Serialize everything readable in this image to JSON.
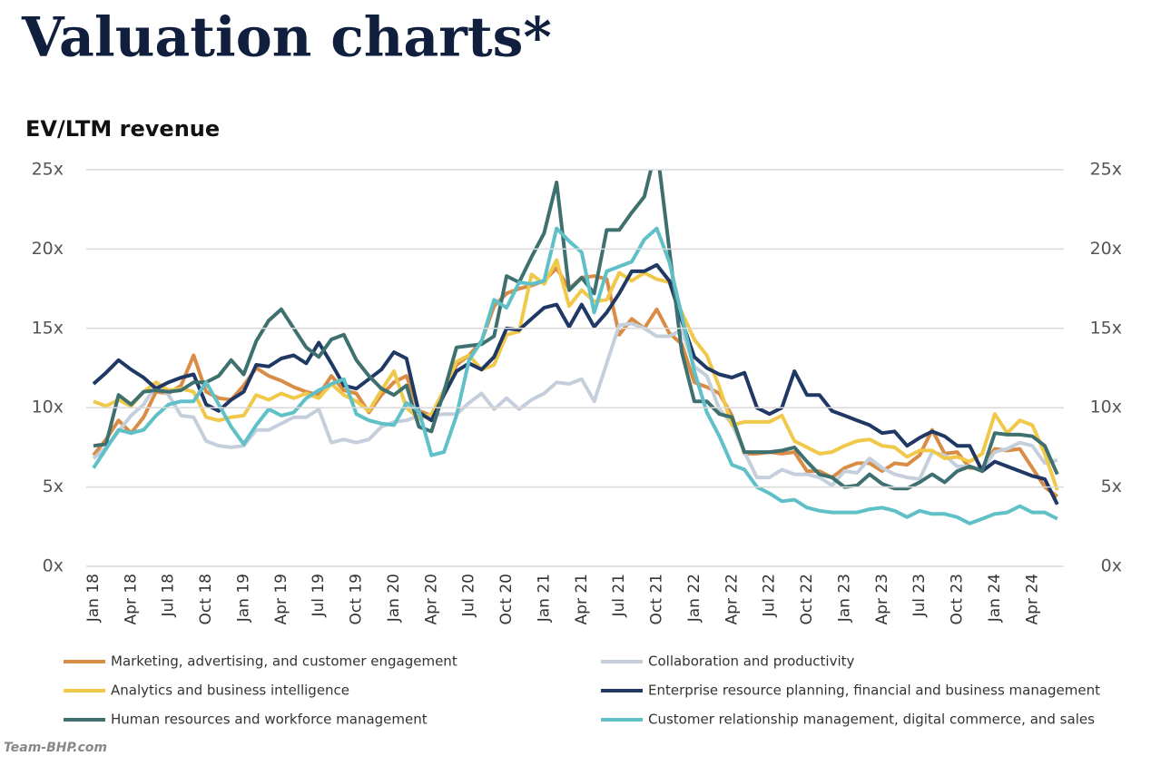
{
  "chart_data": {
    "type": "line",
    "title": "Valuation charts*",
    "subtitle": "EV/LTM revenue",
    "watermark": "Team-BHP.com",
    "categories": [
      "Jan 18",
      null,
      null,
      "Apr 18",
      null,
      null,
      "Jul 18",
      null,
      null,
      "Oct 18",
      null,
      null,
      "Jan 19",
      null,
      null,
      "Apr 19",
      null,
      null,
      "Jul 19",
      null,
      null,
      "Oct 19",
      null,
      null,
      "Jan 20",
      null,
      null,
      "Apr 20",
      null,
      null,
      "Jul 20",
      null,
      null,
      "Oct 20",
      null,
      null,
      "Jan 21",
      null,
      null,
      "Apr 21",
      null,
      null,
      "Jul 21",
      null,
      null,
      "Oct 21",
      null,
      null,
      "Jan 22",
      null,
      null,
      "Apr 22",
      null,
      null,
      "Jul 22",
      null,
      null,
      "Oct 22",
      null,
      null,
      "Jan 23",
      null,
      null,
      "Apr 23",
      null,
      null,
      "Jul 23",
      null,
      null,
      "Oct 23",
      null,
      null,
      "Jan 24",
      null,
      null,
      "Apr 24",
      null,
      null
    ],
    "ylim": [
      0,
      25
    ],
    "yticks": [
      {
        "value": 0,
        "label": "0x"
      },
      {
        "value": 5,
        "label": "5x"
      },
      {
        "value": 10,
        "label": "10x"
      },
      {
        "value": 15,
        "label": "15x"
      },
      {
        "value": 20,
        "label": "20x"
      },
      {
        "value": 25,
        "label": "25x"
      }
    ],
    "grid": true,
    "series": [
      {
        "name": "Marketing, advertising, and customer engagement",
        "color": "#d98c46",
        "values": [
          7,
          8,
          9.2,
          8.4,
          9.4,
          11,
          10.9,
          11.4,
          13.3,
          11,
          10.6,
          10.5,
          11.4,
          12.5,
          12,
          11.7,
          11.3,
          11,
          10.8,
          12,
          11.1,
          10.9,
          9.7,
          10.8,
          11.6,
          12,
          9.8,
          9.5,
          11,
          12.7,
          13.3,
          14.2,
          16.4,
          17.2,
          17.5,
          17.7,
          18,
          18.8,
          17.5,
          18.2,
          18.3,
          18.1,
          14.6,
          15.6,
          15,
          16.2,
          14.7,
          14,
          11.6,
          11.3,
          10.9,
          9.5,
          7.1,
          7.1,
          7.2,
          7.1,
          7.2,
          6,
          6,
          5.6,
          6.2,
          6.5,
          6.5,
          6,
          6.5,
          6.4,
          7,
          8.6,
          7.1,
          7.2,
          6.2,
          6.2,
          7.4,
          7.3,
          7.4,
          6.2,
          5,
          4.4
        ]
      },
      {
        "name": "Collaboration and productivity",
        "color": "#c5cfdc",
        "values": [
          6.8,
          7.5,
          8.5,
          9.5,
          10.2,
          11.4,
          10.8,
          9.5,
          9.4,
          7.9,
          7.6,
          7.5,
          7.6,
          8.6,
          8.6,
          9,
          9.4,
          9.4,
          9.9,
          7.8,
          8,
          7.8,
          8,
          8.8,
          9.1,
          9.2,
          9.5,
          9.5,
          9.6,
          9.6,
          10.3,
          10.9,
          9.9,
          10.6,
          9.9,
          10.5,
          10.9,
          11.6,
          11.5,
          11.8,
          10.4,
          12.8,
          15.2,
          15.3,
          15,
          14.5,
          14.5,
          14.9,
          12.6,
          12,
          9.9,
          9,
          7.2,
          5.6,
          5.6,
          6.1,
          5.8,
          5.8,
          5.6,
          5.1,
          6,
          5.9,
          6.8,
          6.2,
          5.8,
          5.6,
          5.5,
          7.2,
          7,
          6.3,
          6.3,
          6.1,
          7.2,
          7.4,
          7.8,
          7.6,
          6.5,
          6.7
        ]
      },
      {
        "name": "Analytics and business intelligence",
        "color": "#f0c84a",
        "values": [
          10.4,
          10.1,
          10.5,
          10.1,
          11,
          11.6,
          11.1,
          11.2,
          11,
          9.4,
          9.2,
          9.4,
          9.5,
          10.8,
          10.5,
          10.9,
          10.6,
          10.9,
          10.6,
          11.5,
          10.8,
          10.4,
          9.8,
          11.1,
          12.3,
          10,
          9.3,
          9.6,
          11.1,
          12.9,
          13.3,
          12.4,
          12.7,
          14.6,
          14.8,
          18.4,
          17.8,
          19.3,
          16.4,
          17.4,
          16.7,
          16.8,
          18.5,
          18,
          18.5,
          18.1,
          17.9,
          16,
          14.3,
          13.3,
          11.3,
          8.9,
          9.1,
          9.1,
          9.1,
          9.5,
          7.9,
          7.5,
          7.1,
          7.2,
          7.6,
          7.9,
          8,
          7.6,
          7.5,
          6.9,
          7.3,
          7.3,
          6.8,
          6.9,
          6.6,
          7.1,
          9.6,
          8.4,
          9.2,
          8.9,
          7.1,
          4.8
        ]
      },
      {
        "name": "Enterprise resource planning, financial and business management",
        "color": "#203864",
        "values": [
          11.5,
          12.2,
          13,
          12.4,
          11.9,
          11.2,
          11.6,
          11.9,
          12.1,
          10.2,
          9.8,
          10.5,
          11,
          12.7,
          12.6,
          13.1,
          13.3,
          12.8,
          14.1,
          12.8,
          11.4,
          11.2,
          11.8,
          12.4,
          13.5,
          13.1,
          9.7,
          9.2,
          10.8,
          12.3,
          12.8,
          12.4,
          13.2,
          15,
          14.9,
          15.6,
          16.3,
          16.5,
          15.1,
          16.5,
          15.1,
          16,
          17.2,
          18.6,
          18.6,
          19,
          18,
          15.5,
          13.2,
          12.5,
          12.1,
          11.9,
          12.2,
          10,
          9.6,
          10,
          12.3,
          10.8,
          10.8,
          9.8,
          9.5,
          9.2,
          8.9,
          8.4,
          8.5,
          7.6,
          8.1,
          8.5,
          8.2,
          7.6,
          7.6,
          6,
          6.6,
          6.3,
          6,
          5.7,
          5.5,
          3.9
        ]
      },
      {
        "name": "Human resources and workforce management",
        "color": "#3e7070",
        "values": [
          7.6,
          7.7,
          10.8,
          10.2,
          11,
          11.1,
          11,
          11.1,
          11.6,
          11.6,
          12,
          13,
          12.1,
          14.2,
          15.5,
          16.2,
          15,
          13.8,
          13.2,
          14.3,
          14.6,
          13,
          12,
          11.2,
          10.8,
          11.4,
          8.8,
          8.5,
          11,
          13.8,
          13.9,
          14,
          14.5,
          18.3,
          17.9,
          19.5,
          21,
          24.2,
          17.4,
          18.2,
          17.2,
          21.2,
          21.2,
          22.3,
          23.3,
          26.5,
          20,
          13.5,
          10.4,
          10.4,
          9.6,
          9.4,
          7.2,
          7.2,
          7.2,
          7.3,
          7.5,
          6.6,
          5.8,
          5.6,
          5,
          5.1,
          5.8,
          5.2,
          4.9,
          4.9,
          5.3,
          5.8,
          5.3,
          6,
          6.3,
          6,
          8.4,
          8.3,
          8.3,
          8.2,
          7.6,
          5.8
        ]
      },
      {
        "name": "Customer relationship management, digital commerce, and sales",
        "color": "#5fc0c8",
        "values": [
          6.2,
          7.4,
          8.6,
          8.4,
          8.6,
          9.5,
          10.2,
          10.4,
          10.4,
          11.6,
          10.2,
          8.8,
          7.7,
          8.9,
          9.9,
          9.5,
          9.7,
          10.6,
          11.1,
          11.5,
          11.8,
          9.6,
          9.2,
          9,
          8.9,
          10.3,
          9.8,
          7,
          7.2,
          9.5,
          13,
          14.2,
          16.8,
          16.3,
          17.9,
          17.8,
          18,
          21.3,
          20.5,
          19.8,
          16,
          18.6,
          18.9,
          19.2,
          20.6,
          21.3,
          19.2,
          15.8,
          12.3,
          9.7,
          8.2,
          6.4,
          6.1,
          5,
          4.6,
          4.1,
          4.2,
          3.7,
          3.5,
          3.4,
          3.4,
          3.4,
          3.6,
          3.7,
          3.5,
          3.1,
          3.5,
          3.3,
          3.3,
          3.1,
          2.7,
          3,
          3.3,
          3.4,
          3.8,
          3.4,
          3.4,
          3
        ]
      }
    ]
  }
}
